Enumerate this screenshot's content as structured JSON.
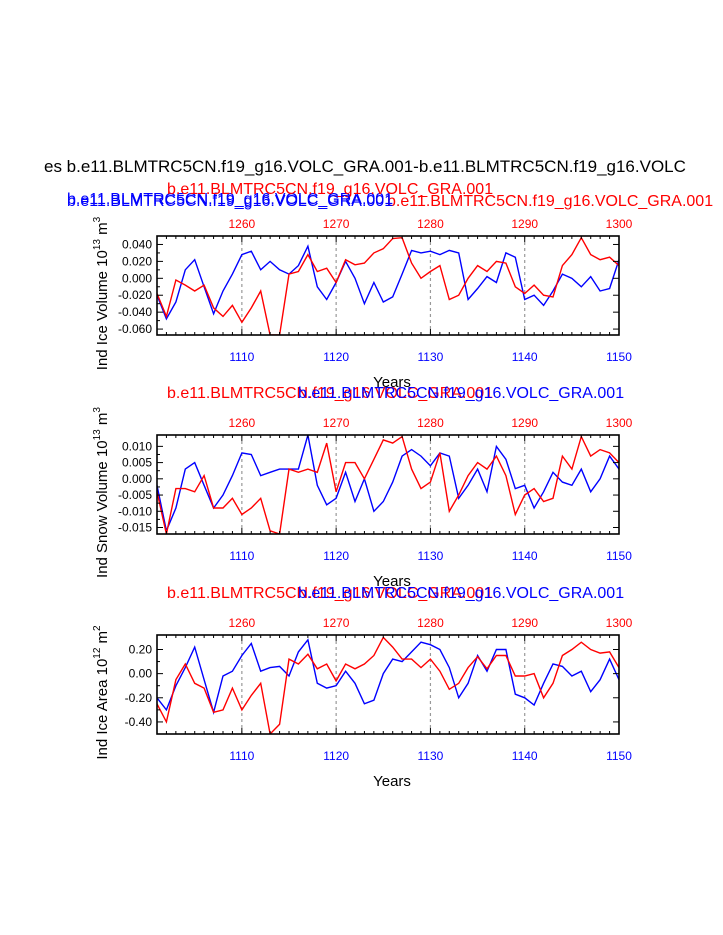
{
  "page_title": "es b.e11.BLMTRC5CN.f19_g16.VOLC_GRA.001-b.e11.BLMTRC5CN.f19_g16.VOLC",
  "colors": {
    "blue": "#0000ff",
    "red": "#ff0000",
    "axis": "#000000",
    "grid": "#999999"
  },
  "chart_data": [
    {
      "type": "line",
      "title_blue": "b.e11.BLMTRC5CN.f19_g16.VOLC_GRA.001",
      "title_red": "b.e11.BLMTRC5CN.f19_g16.VOLC_GRA.001",
      "title_blue_extra": "b.e11.BLMTRC5CN.f19_g16.VOLC_GRA.001",
      "title_red_extra": "b.e11.BLMTRC5CN.f19_g16.VOLC_GRA.001",
      "xlabel": "Years",
      "ylabel": "Ind Ice Volume 10",
      "ylabel_exp": "13",
      "ylabel_unit": " m",
      "ylabel_unit_exp": "3",
      "bottom_axis": {
        "range": [
          1101,
          1150
        ],
        "ticks": [
          1110,
          1120,
          1130,
          1140,
          1150
        ],
        "labels": [
          "1110",
          "1120",
          "1130",
          "1140",
          "1150"
        ]
      },
      "top_axis": {
        "range": [
          1251,
          1300
        ],
        "ticks": [
          1260,
          1270,
          1280,
          1290,
          1300
        ],
        "labels": [
          "1260",
          "1270",
          "1280",
          "1290",
          "1300"
        ]
      },
      "ylim": [
        -0.067,
        0.05
      ],
      "yticks": [
        -0.06,
        -0.04,
        -0.02,
        0.0,
        0.02,
        0.04
      ],
      "ytick_labels": [
        "-0.060",
        "-0.040",
        "-0.020",
        "0.000",
        "0.020",
        "0.040"
      ],
      "grid_x": [
        1110,
        1120,
        1130,
        1140
      ],
      "series": [
        {
          "name": "b.e11.BLMTRC5CN.f19_g16.VOLC_GRA.001",
          "color": "blue",
          "axis": "bottom",
          "values": [
            -0.02,
            -0.048,
            -0.028,
            0.01,
            0.022,
            -0.01,
            -0.042,
            -0.015,
            0.005,
            0.028,
            0.032,
            0.01,
            0.02,
            0.01,
            0.005,
            0.015,
            0.038,
            -0.01,
            -0.025,
            -0.005,
            0.02,
            0.0,
            -0.03,
            -0.005,
            -0.028,
            -0.022,
            0.005,
            0.033,
            0.03,
            0.032,
            0.028,
            0.033,
            0.03,
            -0.025,
            -0.012,
            0.002,
            -0.005,
            0.03,
            0.025,
            -0.025,
            -0.02,
            -0.032,
            -0.015,
            0.005,
            0.0,
            -0.01,
            0.002,
            -0.015,
            -0.012,
            0.022
          ]
        },
        {
          "name": "b.e11.BLMTRC5CN.f19_g16.VOLC_GRA.001",
          "color": "red",
          "axis": "top",
          "values": [
            -0.018,
            -0.045,
            -0.002,
            -0.008,
            -0.015,
            -0.008,
            -0.035,
            -0.045,
            -0.032,
            -0.052,
            -0.035,
            -0.015,
            -0.067,
            -0.067,
            0.005,
            0.008,
            0.028,
            0.008,
            0.012,
            -0.005,
            0.022,
            0.016,
            0.018,
            0.03,
            0.035,
            0.047,
            0.048,
            0.018,
            0.0,
            0.008,
            0.015,
            -0.025,
            -0.02,
            0.0,
            0.015,
            0.008,
            0.02,
            0.018,
            -0.01,
            -0.018,
            -0.008,
            -0.02,
            -0.022,
            0.015,
            0.028,
            0.048,
            0.028,
            0.022,
            0.025,
            0.015
          ]
        }
      ]
    },
    {
      "type": "line",
      "title_blue": "b.e11.BLMTRC5CN.f19_g16.VOLC_GRA.001",
      "title_red": "b.e11.BLMTRC5CN.f19_g16.VOLC_GRA.001",
      "xlabel": "Years",
      "ylabel": "Ind Snow Volume 10",
      "ylabel_exp": "13",
      "ylabel_unit": " m",
      "ylabel_unit_exp": "3",
      "bottom_axis": {
        "range": [
          1101,
          1150
        ],
        "ticks": [
          1110,
          1120,
          1130,
          1140,
          1150
        ],
        "labels": [
          "1110",
          "1120",
          "1130",
          "1140",
          "1150"
        ]
      },
      "top_axis": {
        "range": [
          1251,
          1300
        ],
        "ticks": [
          1260,
          1270,
          1280,
          1290,
          1300
        ],
        "labels": [
          "1260",
          "1270",
          "1280",
          "1290",
          "1300"
        ]
      },
      "ylim": [
        -0.017,
        0.0135
      ],
      "yticks": [
        -0.015,
        -0.01,
        -0.005,
        0.0,
        0.005,
        0.01
      ],
      "ytick_labels": [
        "-0.015",
        "-0.010",
        "-0.005",
        "0.000",
        "0.005",
        "0.010"
      ],
      "grid_x": [
        1110,
        1120,
        1130,
        1140
      ],
      "series": [
        {
          "name": "b.e11.BLMTRC5CN.f19_g16.VOLC_GRA.001",
          "color": "blue",
          "axis": "bottom",
          "values": [
            -0.002,
            -0.016,
            -0.009,
            0.003,
            0.005,
            -0.002,
            -0.009,
            -0.005,
            0.001,
            0.008,
            0.0075,
            0.001,
            0.002,
            0.003,
            0.003,
            0.003,
            0.0135,
            -0.002,
            -0.008,
            -0.006,
            0.002,
            -0.007,
            0.0,
            -0.01,
            -0.007,
            -0.001,
            0.007,
            0.009,
            0.007,
            0.004,
            0.008,
            0.007,
            -0.006,
            -0.002,
            0.003,
            -0.004,
            0.01,
            0.006,
            -0.003,
            -0.002,
            -0.009,
            -0.004,
            0.002,
            -0.001,
            -0.002,
            0.003,
            -0.004,
            0.0,
            0.007,
            0.003
          ]
        },
        {
          "name": "b.e11.BLMTRC5CN.f19_g16.VOLC_GRA.001",
          "color": "red",
          "axis": "top",
          "values": [
            -0.004,
            -0.017,
            -0.003,
            -0.003,
            -0.004,
            0.001,
            -0.009,
            -0.009,
            -0.006,
            -0.011,
            -0.009,
            -0.006,
            -0.016,
            -0.017,
            0.003,
            0.002,
            0.003,
            0.002,
            0.011,
            -0.004,
            0.005,
            0.005,
            0.0,
            0.006,
            0.012,
            0.011,
            0.013,
            0.003,
            -0.003,
            -0.001,
            0.008,
            -0.01,
            -0.005,
            0.001,
            0.005,
            0.003,
            0.007,
            0.001,
            -0.011,
            -0.005,
            -0.003,
            -0.007,
            -0.006,
            0.007,
            0.003,
            0.013,
            0.007,
            0.009,
            0.008,
            0.005
          ]
        }
      ]
    },
    {
      "type": "line",
      "title_blue": "b.e11.BLMTRC5CN.f19_g16.VOLC_GRA.001",
      "title_red": "b.e11.BLMTRC5CN.f19_g16.VOLC_GRA.001",
      "xlabel": "Years",
      "ylabel": "Ind Ice Area 10",
      "ylabel_exp": "12",
      "ylabel_unit": " m",
      "ylabel_unit_exp": "2",
      "bottom_axis": {
        "range": [
          1101,
          1150
        ],
        "ticks": [
          1110,
          1120,
          1130,
          1140,
          1150
        ],
        "labels": [
          "1110",
          "1120",
          "1130",
          "1140",
          "1150"
        ]
      },
      "top_axis": {
        "range": [
          1251,
          1300
        ],
        "ticks": [
          1260,
          1270,
          1280,
          1290,
          1300
        ],
        "labels": [
          "1260",
          "1270",
          "1280",
          "1290",
          "1300"
        ]
      },
      "ylim": [
        -0.5,
        0.32
      ],
      "yticks": [
        -0.4,
        -0.2,
        0.0,
        0.2
      ],
      "ytick_labels": [
        "-0.40",
        "-0.20",
        "0.00",
        "0.20"
      ],
      "grid_x": [
        1110,
        1120,
        1130,
        1140
      ],
      "series": [
        {
          "name": "b.e11.BLMTRC5CN.f19_g16.VOLC_GRA.001",
          "color": "blue",
          "axis": "bottom",
          "values": [
            -0.2,
            -0.3,
            -0.1,
            0.05,
            0.22,
            -0.05,
            -0.32,
            -0.02,
            0.02,
            0.15,
            0.25,
            0.02,
            0.05,
            0.06,
            -0.02,
            0.18,
            0.28,
            -0.08,
            -0.12,
            -0.1,
            0.02,
            -0.08,
            -0.25,
            -0.22,
            0.0,
            0.12,
            0.1,
            0.18,
            0.26,
            0.24,
            0.2,
            0.05,
            -0.2,
            -0.08,
            0.15,
            0.02,
            0.2,
            0.2,
            -0.17,
            -0.2,
            -0.26,
            -0.08,
            0.08,
            0.06,
            -0.02,
            0.02,
            -0.15,
            -0.05,
            0.12,
            -0.05
          ]
        },
        {
          "name": "b.e11.BLMTRC5CN.f19_g16.VOLC_GRA.001",
          "color": "red",
          "axis": "top",
          "values": [
            -0.25,
            -0.4,
            -0.05,
            0.08,
            -0.08,
            -0.12,
            -0.32,
            -0.3,
            -0.12,
            -0.3,
            -0.18,
            -0.08,
            -0.5,
            -0.42,
            0.12,
            0.08,
            0.16,
            0.04,
            0.08,
            -0.06,
            0.08,
            0.04,
            0.08,
            0.15,
            0.3,
            0.22,
            0.12,
            0.12,
            0.05,
            0.12,
            0.02,
            -0.13,
            -0.08,
            0.05,
            0.14,
            0.04,
            0.15,
            0.15,
            -0.02,
            -0.02,
            0.0,
            -0.2,
            -0.08,
            0.15,
            0.2,
            0.26,
            0.2,
            0.17,
            0.18,
            0.05
          ]
        }
      ]
    }
  ]
}
